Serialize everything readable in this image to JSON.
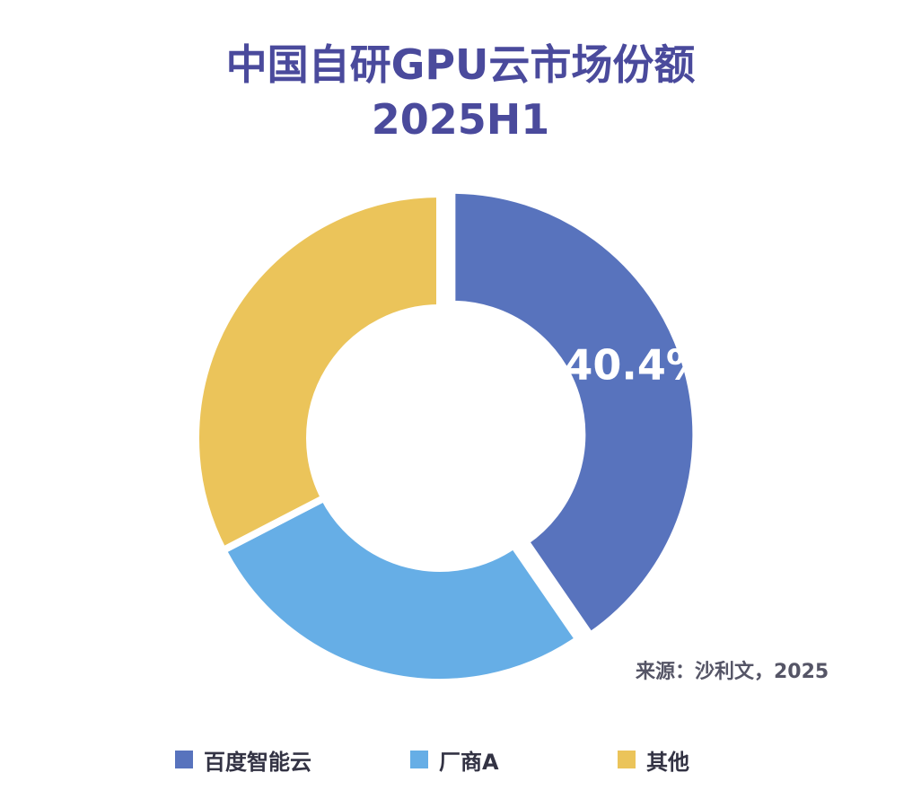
{
  "chart_data": {
    "type": "pie",
    "title": "中国自研GPU云市场份额",
    "subtitle": "2025H1",
    "slices": [
      {
        "name": "百度智能云",
        "value": 40.4,
        "label": "40.4%",
        "color": "#5873bd"
      },
      {
        "name": "厂商A",
        "value": 27.0,
        "label": "",
        "color": "#66aee6"
      },
      {
        "name": "其他",
        "value": 32.6,
        "label": "",
        "color": "#ebc45a"
      }
    ],
    "legend_position": "bottom",
    "source_note": "来源：沙利文，2025"
  }
}
